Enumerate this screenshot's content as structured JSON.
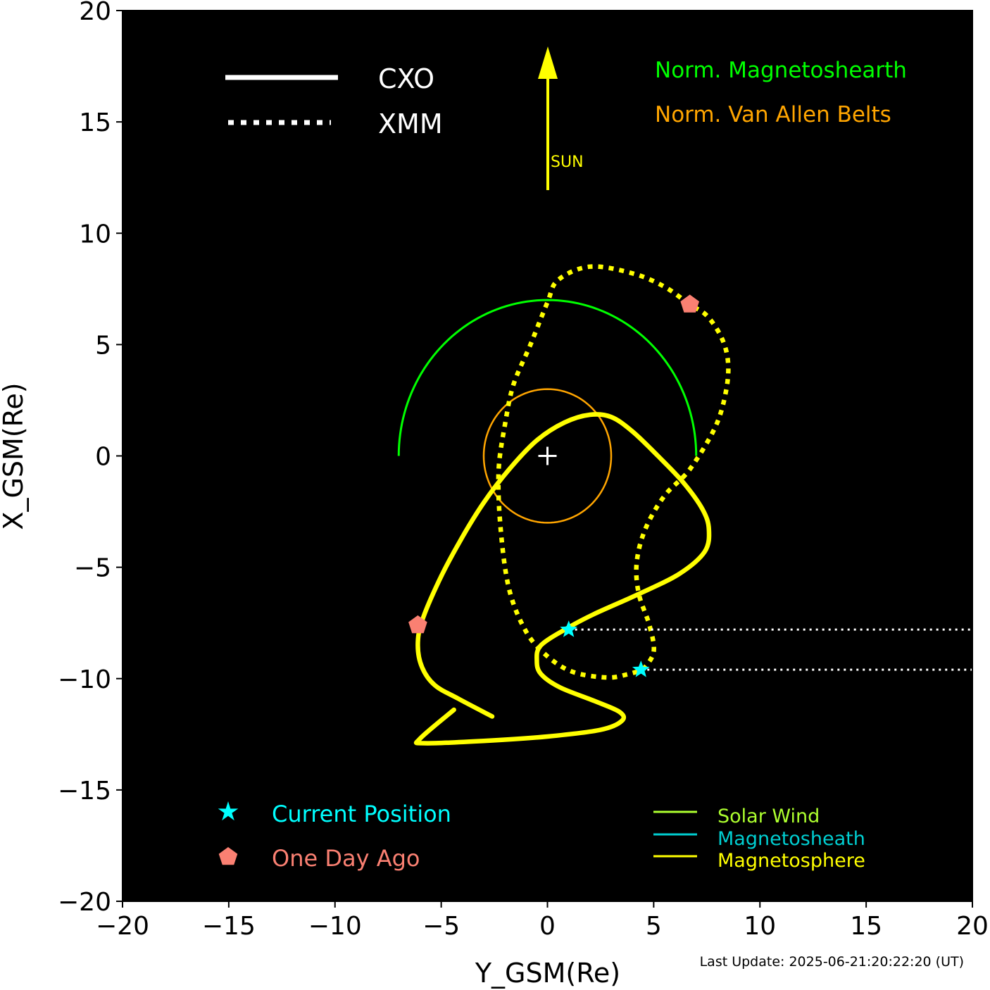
{
  "chart_data": {
    "type": "line",
    "xlabel": "Y_GSM(Re)",
    "ylabel": "X_GSM(Re)",
    "xlim": [
      -20,
      20
    ],
    "ylim": [
      -20,
      20
    ],
    "xticks": [
      "−20",
      "−15",
      "−10",
      "−5",
      "0",
      "5",
      "10",
      "15",
      "20"
    ],
    "yticks": [
      "20",
      "15",
      "10",
      "5",
      "0",
      "−5",
      "−10",
      "−15",
      "−20"
    ],
    "grid": false,
    "legend_style": {
      "cxo_label": "CXO",
      "xmm_label": "XMM"
    },
    "sun_label": "SUN",
    "region_labels": {
      "magnetosheath": "Norm. Magnetoshearth",
      "van_allen": "Norm. Van Allen Belts"
    },
    "marker_legend": {
      "current": "Current Position",
      "one_day_ago": "One Day Ago"
    },
    "region_legend": [
      "Solar Wind",
      "Magnetosheath",
      "Magnetosphere"
    ],
    "colors": {
      "background": "#000000",
      "orbit": "#ffff00",
      "magnetosheath": "#00ff00",
      "van_allen": "#ffa500",
      "current_marker": "#00ffff",
      "day_ago_marker": "#fa8072",
      "solar_wind": "#adff2f",
      "magnetosheath_legend": "#00ced1",
      "magnetosphere": "#ffff00"
    },
    "magnetosheath_arc": {
      "radius": 7.0,
      "from_deg": 0,
      "to_deg": 180
    },
    "van_allen_circle": {
      "radius": 3.0
    },
    "earth": [
      0,
      0
    ],
    "series": [
      {
        "name": "CXO",
        "style": "solid",
        "points": [
          [
            -2.6,
            -11.7
          ],
          [
            -4.2,
            -10.9
          ],
          [
            -5.3,
            -10.3
          ],
          [
            -5.9,
            -9.5
          ],
          [
            -6.1,
            -8.5
          ],
          [
            -5.9,
            -7.4
          ],
          [
            -5.1,
            -5.6
          ],
          [
            -4.1,
            -3.8
          ],
          [
            -3.0,
            -2.1
          ],
          [
            -1.8,
            -0.6
          ],
          [
            -0.5,
            0.7
          ],
          [
            0.8,
            1.5
          ],
          [
            2.0,
            1.85
          ],
          [
            3.0,
            1.75
          ],
          [
            4.0,
            1.1
          ],
          [
            5.2,
            0.0
          ],
          [
            6.4,
            -1.2
          ],
          [
            7.3,
            -2.4
          ],
          [
            7.6,
            -3.3
          ],
          [
            7.4,
            -4.3
          ],
          [
            6.2,
            -5.3
          ],
          [
            4.3,
            -6.2
          ],
          [
            2.2,
            -7.1
          ],
          [
            1.0,
            -7.7
          ],
          [
            -0.3,
            -8.5
          ],
          [
            -0.5,
            -9.2
          ],
          [
            -0.3,
            -9.8
          ],
          [
            0.6,
            -10.4
          ],
          [
            2.2,
            -11.0
          ],
          [
            3.4,
            -11.5
          ],
          [
            3.5,
            -11.9
          ],
          [
            2.5,
            -12.3
          ],
          [
            0.0,
            -12.6
          ],
          [
            -3.0,
            -12.8
          ],
          [
            -5.8,
            -12.9
          ],
          [
            -6.0,
            -12.7
          ],
          [
            -4.4,
            -11.4
          ]
        ]
      },
      {
        "name": "XMM",
        "style": "dotted",
        "points": [
          [
            4.5,
            -9.6
          ],
          [
            5.0,
            -8.8
          ],
          [
            4.8,
            -7.6
          ],
          [
            4.3,
            -6.2
          ],
          [
            4.2,
            -4.8
          ],
          [
            4.6,
            -3.3
          ],
          [
            5.5,
            -1.8
          ],
          [
            6.7,
            -0.6
          ],
          [
            7.9,
            1.3
          ],
          [
            8.4,
            2.9
          ],
          [
            8.5,
            4.2
          ],
          [
            8.2,
            5.3
          ],
          [
            7.5,
            6.3
          ],
          [
            6.7,
            6.8
          ],
          [
            5.5,
            7.6
          ],
          [
            4.0,
            8.2
          ],
          [
            2.0,
            8.5
          ],
          [
            0.5,
            7.9
          ],
          [
            0.0,
            6.9
          ],
          [
            -0.8,
            5.0
          ],
          [
            -1.6,
            3.2
          ],
          [
            -2.0,
            1.4
          ],
          [
            -2.3,
            -0.7
          ],
          [
            -2.2,
            -3.3
          ],
          [
            -1.8,
            -6.0
          ],
          [
            -1.0,
            -7.9
          ],
          [
            0.0,
            -9.0
          ],
          [
            1.2,
            -9.7
          ],
          [
            2.8,
            -9.95
          ],
          [
            3.8,
            -9.8
          ],
          [
            4.5,
            -9.6
          ]
        ]
      }
    ],
    "markers": {
      "current": [
        [
          1.0,
          -7.8
        ],
        [
          4.4,
          -9.6
        ]
      ],
      "one_day_ago": [
        [
          -6.1,
          -7.6
        ],
        [
          6.7,
          6.8
        ]
      ]
    },
    "projections_to_right_edge": [
      [
        1.0,
        -7.8
      ],
      [
        4.4,
        -9.6
      ]
    ],
    "footer": "Last Update: 2025-06-21:20:22:20 (UT)"
  }
}
